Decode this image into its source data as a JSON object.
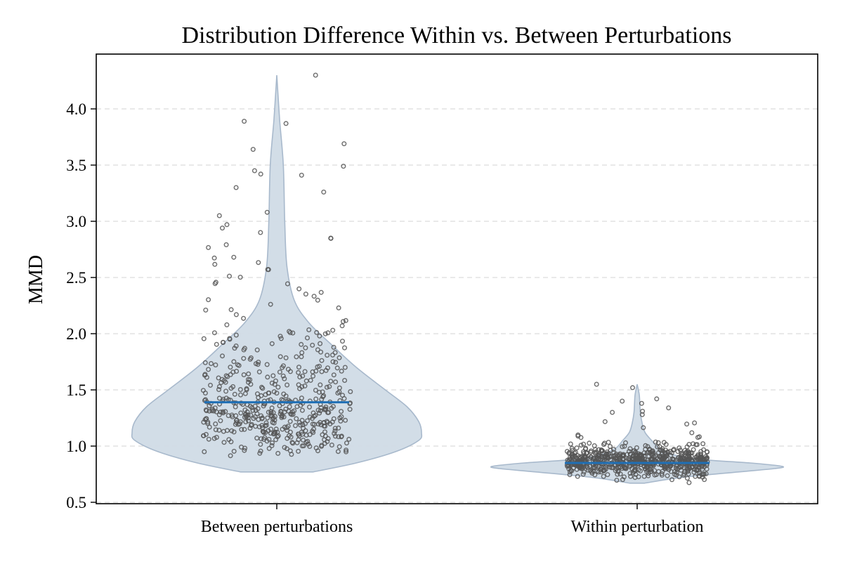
{
  "chart_data": {
    "type": "violin",
    "title": "Distribution Difference Within vs. Between Perturbations",
    "xlabel": "",
    "ylabel": "MMD",
    "ylim": [
      0.5,
      4.45
    ],
    "yticks": [
      0.5,
      1.0,
      1.5,
      2.0,
      2.5,
      3.0,
      3.5,
      4.0
    ],
    "ytick_labels": [
      "0.5",
      "1.0",
      "1.5",
      "2.0",
      "2.5",
      "3.0",
      "3.5",
      "4.0"
    ],
    "grid": "horizontal dashed",
    "categories": [
      "Between perturbations",
      "Within perturbation"
    ],
    "series": [
      {
        "name": "Between perturbations",
        "median": 1.39,
        "min": 0.77,
        "max": 4.3,
        "density_profile": [
          {
            "y": 0.77,
            "half_width": 0.25
          },
          {
            "y": 0.85,
            "half_width": 0.55
          },
          {
            "y": 0.95,
            "half_width": 0.82
          },
          {
            "y": 1.05,
            "half_width": 0.98
          },
          {
            "y": 1.12,
            "half_width": 1.0
          },
          {
            "y": 1.22,
            "half_width": 0.98
          },
          {
            "y": 1.35,
            "half_width": 0.9
          },
          {
            "y": 1.5,
            "half_width": 0.75
          },
          {
            "y": 1.7,
            "half_width": 0.55
          },
          {
            "y": 1.9,
            "half_width": 0.38
          },
          {
            "y": 2.1,
            "half_width": 0.22
          },
          {
            "y": 2.3,
            "half_width": 0.12
          },
          {
            "y": 2.6,
            "half_width": 0.07
          },
          {
            "y": 3.0,
            "half_width": 0.055
          },
          {
            "y": 3.5,
            "half_width": 0.045
          },
          {
            "y": 3.9,
            "half_width": 0.02
          },
          {
            "y": 4.3,
            "half_width": 0.0
          }
        ],
        "n_points": 520,
        "notable_points": [
          4.3,
          3.89,
          3.87,
          3.69,
          3.64,
          3.49,
          3.45,
          3.42,
          3.41,
          3.3,
          3.26,
          3.08,
          3.05,
          2.97,
          2.94,
          2.9,
          2.85,
          2.68,
          2.57,
          1.81,
          1.55
        ]
      },
      {
        "name": "Within perturbation",
        "median": 0.85,
        "min": 0.67,
        "max": 1.55,
        "density_profile": [
          {
            "y": 0.67,
            "half_width": 0.05
          },
          {
            "y": 0.72,
            "half_width": 0.3
          },
          {
            "y": 0.77,
            "half_width": 0.7
          },
          {
            "y": 0.8,
            "half_width": 0.95
          },
          {
            "y": 0.82,
            "half_width": 1.0
          },
          {
            "y": 0.85,
            "half_width": 0.78
          },
          {
            "y": 0.88,
            "half_width": 0.45
          },
          {
            "y": 0.92,
            "half_width": 0.26
          },
          {
            "y": 0.98,
            "half_width": 0.15
          },
          {
            "y": 1.05,
            "half_width": 0.1
          },
          {
            "y": 1.12,
            "half_width": 0.055
          },
          {
            "y": 1.2,
            "half_width": 0.035
          },
          {
            "y": 1.3,
            "half_width": 0.022
          },
          {
            "y": 1.45,
            "half_width": 0.015
          },
          {
            "y": 1.55,
            "half_width": 0.0
          }
        ],
        "n_points": 700,
        "notable_points": [
          1.55,
          1.52,
          1.42,
          1.4,
          1.38,
          1.34,
          1.31,
          1.3,
          1.28
        ]
      }
    ],
    "colors": {
      "violin_fill": "#d0dbe6",
      "violin_edge": "#a8b9cc",
      "median_line": "#1f6fb5",
      "points": "#555555"
    }
  }
}
